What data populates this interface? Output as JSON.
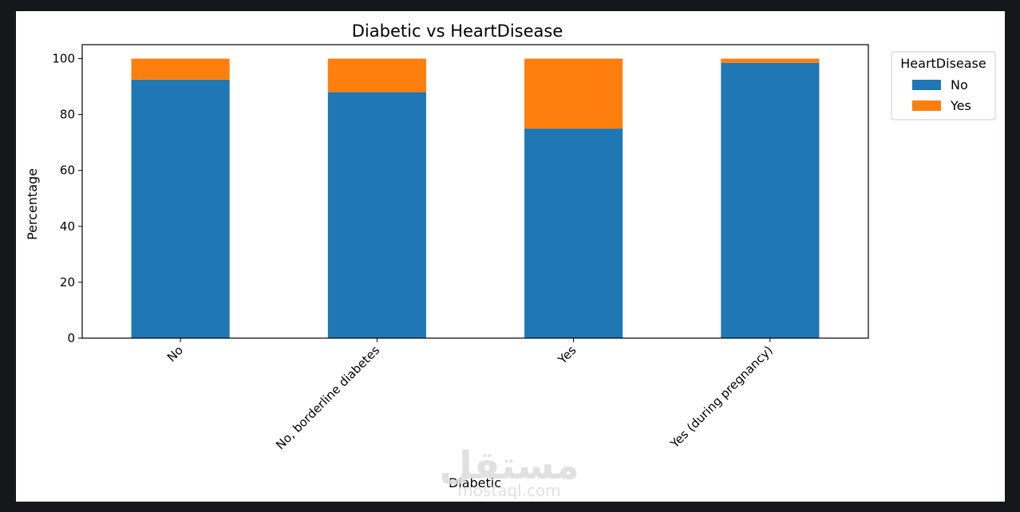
{
  "chart_data": {
    "type": "bar",
    "stacked": true,
    "title": "Diabetic vs HeartDisease",
    "xlabel": "Diabetic",
    "ylabel": "Percentage",
    "ylim": [
      0,
      105
    ],
    "yticks": [
      0,
      20,
      40,
      60,
      80,
      100
    ],
    "categories": [
      "No",
      "No, borderline diabetes",
      "Yes",
      "Yes (during pregnancy)"
    ],
    "series": [
      {
        "name": "No",
        "color": "#1f77b4",
        "values": [
          92.5,
          88.0,
          75.0,
          98.5
        ]
      },
      {
        "name": "Yes",
        "color": "#ff7f0e",
        "values": [
          7.5,
          12.0,
          25.0,
          1.5
        ]
      }
    ],
    "legend": {
      "title": "HeartDisease",
      "position": "upper right, outside plot"
    },
    "grid": false
  },
  "watermark": {
    "main": "مستقل",
    "sub": "mostaql.com"
  }
}
